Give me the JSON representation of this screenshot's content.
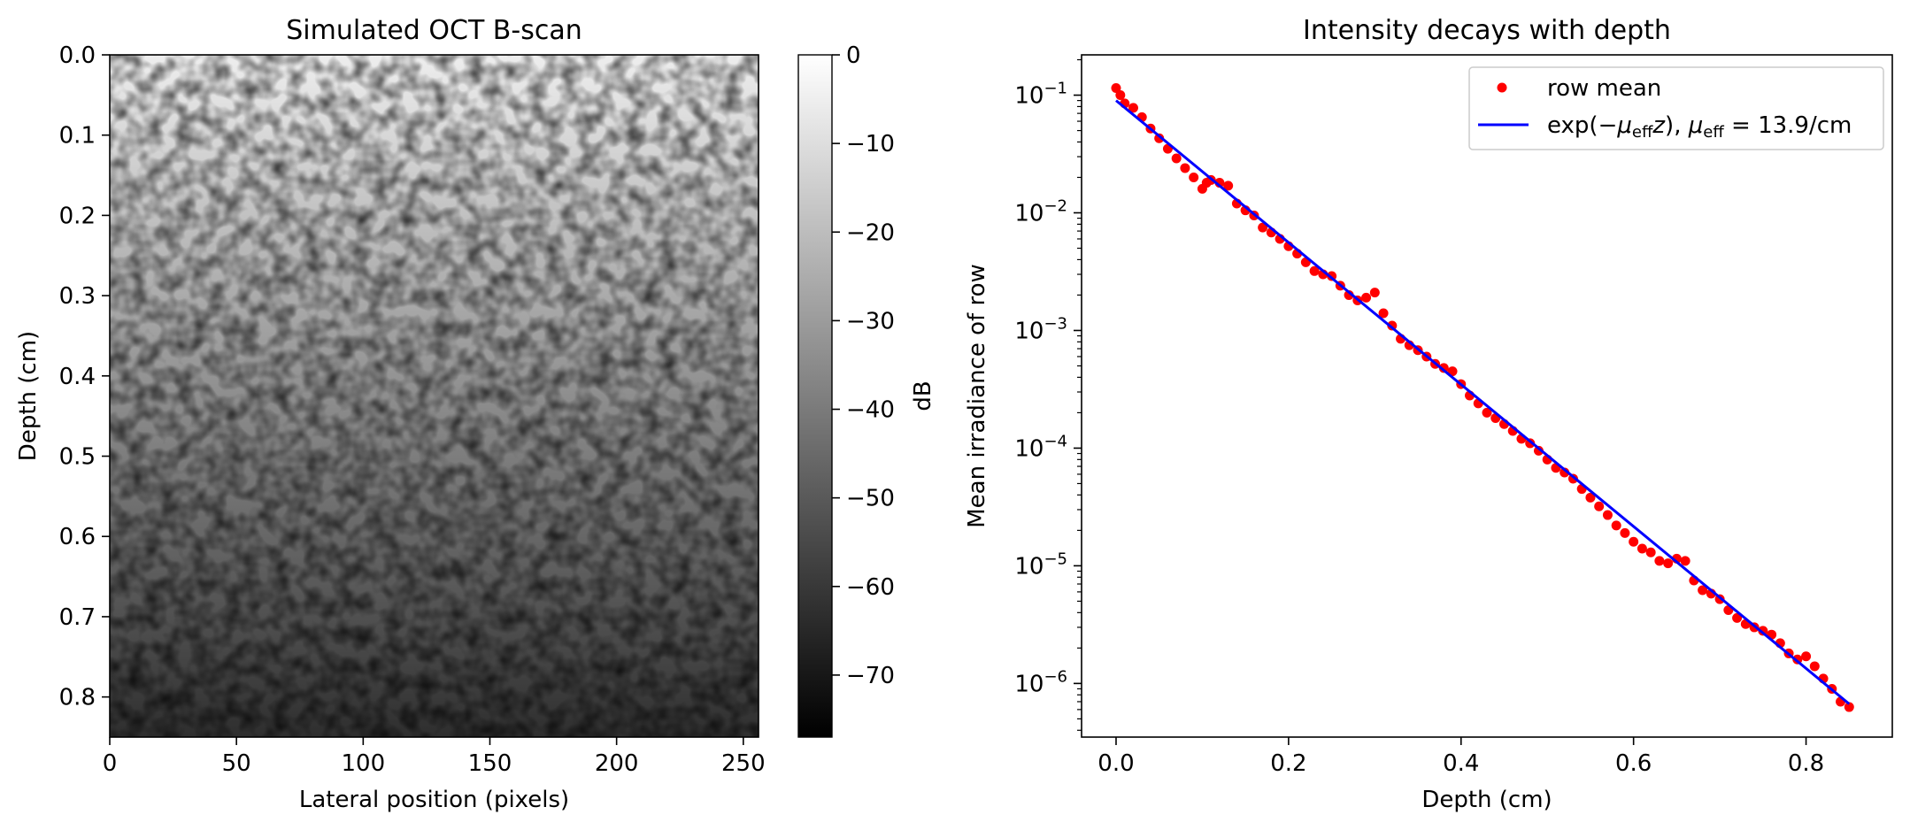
{
  "chart_data": [
    {
      "type": "heatmap",
      "title": "Simulated OCT B-scan",
      "xlabel": "Lateral position (pixels)",
      "ylabel": "Depth (cm)",
      "xlim": [
        0,
        256
      ],
      "ylim": [
        0.85,
        0.0
      ],
      "xticks": [
        "0",
        "50",
        "100",
        "150",
        "200",
        "250"
      ],
      "yticks": [
        "0.0",
        "0.1",
        "0.2",
        "0.3",
        "0.4",
        "0.5",
        "0.6",
        "0.7",
        "0.8"
      ],
      "colormap": "gray",
      "mean_db_by_depth": {
        "depth_cm": [
          0.0,
          0.85
        ],
        "db": [
          -5,
          -63
        ]
      },
      "colorbar": {
        "label": "dB",
        "range": [
          -77,
          0
        ],
        "ticks": [
          "0",
          "−10",
          "−20",
          "−30",
          "−40",
          "−50",
          "−60",
          "−70"
        ]
      },
      "grid": false
    },
    {
      "type": "scatter",
      "title": "Intensity decays with depth",
      "xlabel": "Depth (cm)",
      "ylabel": "Mean irradiance of row",
      "xlim": [
        -0.04,
        0.9
      ],
      "ylim": [
        3.5e-07,
        0.22
      ],
      "yscale": "log",
      "xticks": [
        "0.0",
        "0.2",
        "0.4",
        "0.6",
        "0.8"
      ],
      "yticks": [
        {
          "base": "10",
          "exp": "−1"
        },
        {
          "base": "10",
          "exp": "−2"
        },
        {
          "base": "10",
          "exp": "−3"
        },
        {
          "base": "10",
          "exp": "−4"
        },
        {
          "base": "10",
          "exp": "−5"
        },
        {
          "base": "10",
          "exp": "−6"
        }
      ],
      "legend_position": "top-right",
      "grid": false,
      "series": [
        {
          "name": "row mean",
          "style": "markers",
          "color": "#ff0000",
          "x": [
            0.0,
            0.005,
            0.01,
            0.02,
            0.03,
            0.04,
            0.05,
            0.06,
            0.07,
            0.08,
            0.09,
            0.1,
            0.105,
            0.11,
            0.12,
            0.13,
            0.14,
            0.15,
            0.16,
            0.17,
            0.18,
            0.19,
            0.2,
            0.21,
            0.22,
            0.23,
            0.24,
            0.25,
            0.26,
            0.27,
            0.28,
            0.29,
            0.3,
            0.31,
            0.32,
            0.33,
            0.34,
            0.35,
            0.36,
            0.37,
            0.38,
            0.39,
            0.4,
            0.41,
            0.42,
            0.43,
            0.44,
            0.45,
            0.46,
            0.47,
            0.48,
            0.49,
            0.5,
            0.51,
            0.52,
            0.53,
            0.54,
            0.55,
            0.56,
            0.57,
            0.58,
            0.59,
            0.6,
            0.61,
            0.62,
            0.63,
            0.64,
            0.65,
            0.66,
            0.67,
            0.68,
            0.69,
            0.7,
            0.71,
            0.72,
            0.73,
            0.74,
            0.75,
            0.76,
            0.77,
            0.78,
            0.79,
            0.8,
            0.81,
            0.82,
            0.83,
            0.84,
            0.85
          ],
          "y": [
            0.115,
            0.1,
            0.085,
            0.078,
            0.065,
            0.052,
            0.043,
            0.035,
            0.029,
            0.024,
            0.02,
            0.016,
            0.018,
            0.019,
            0.018,
            0.017,
            0.012,
            0.0105,
            0.0095,
            0.0075,
            0.0068,
            0.006,
            0.0052,
            0.0045,
            0.0038,
            0.0032,
            0.003,
            0.0029,
            0.0024,
            0.002,
            0.0018,
            0.0019,
            0.0021,
            0.0014,
            0.0011,
            0.00085,
            0.00075,
            0.00068,
            0.0006,
            0.00052,
            0.00048,
            0.00045,
            0.00035,
            0.00028,
            0.00024,
            0.0002,
            0.00018,
            0.00016,
            0.00014,
            0.00012,
            0.00011,
            9.5e-05,
            8e-05,
            6.8e-05,
            6.2e-05,
            5.5e-05,
            4.5e-05,
            3.8e-05,
            3.2e-05,
            2.7e-05,
            2.2e-05,
            1.9e-05,
            1.6e-05,
            1.4e-05,
            1.3e-05,
            1.1e-05,
            1.05e-05,
            1.15e-05,
            1.1e-05,
            7.5e-06,
            6.2e-06,
            5.8e-06,
            5.2e-06,
            4.2e-06,
            3.6e-06,
            3.2e-06,
            3e-06,
            2.8e-06,
            2.6e-06,
            2.2e-06,
            1.8e-06,
            1.6e-06,
            1.7e-06,
            1.4e-06,
            1.1e-06,
            9e-07,
            7e-07,
            6.3e-07
          ]
        },
        {
          "name": "exp(−μ_eff z), μ_eff = 13.9/cm",
          "style": "line",
          "color": "#0000ff",
          "x": [
            0.0,
            0.85
          ],
          "y": [
            0.09,
            6.7e-07
          ]
        }
      ],
      "legend": {
        "entry1": "row mean",
        "entry2": {
          "exp_open": "exp(−",
          "mu": "μ",
          "sub": "eff",
          "after_sub": "z",
          "mid": "), ",
          "mu2": "μ",
          "sub2": "eff",
          "value": " = 13.9/cm"
        }
      }
    }
  ]
}
